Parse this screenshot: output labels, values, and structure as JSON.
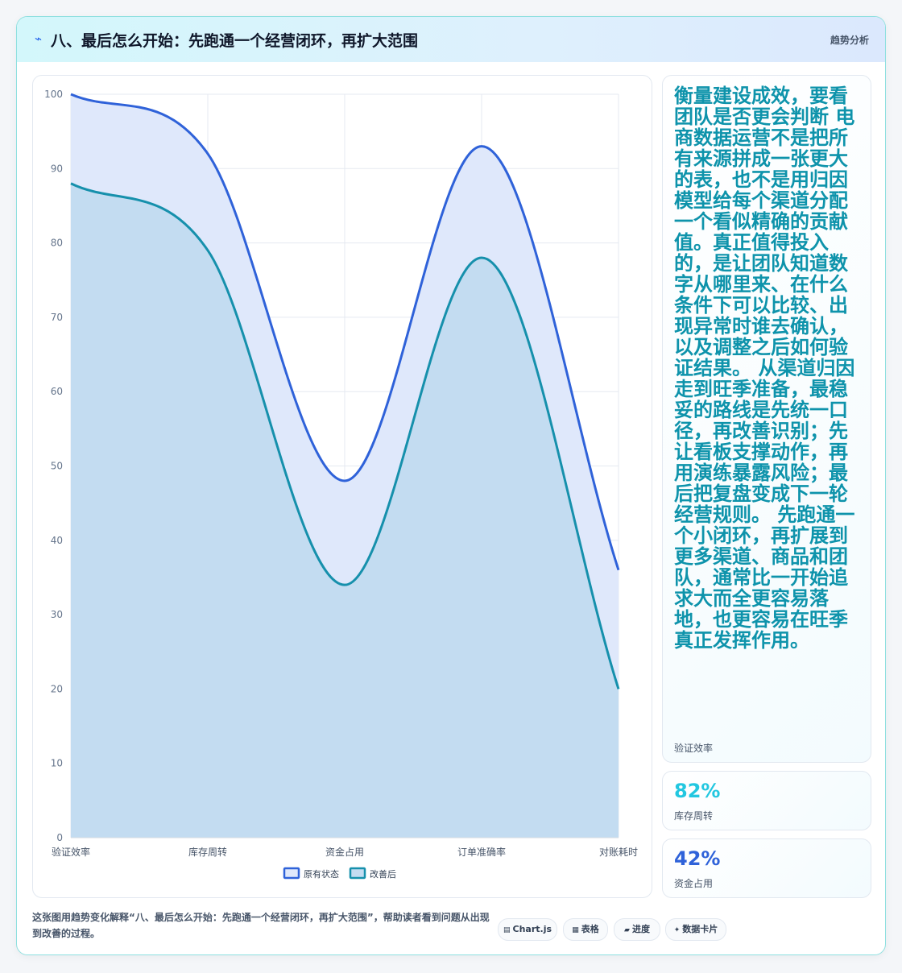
{
  "header": {
    "icon": "lightning-icon",
    "title": "八、最后怎么开始：先跑通一个经营闭环，再扩大范围",
    "tag": "趋势分析"
  },
  "chart_data": {
    "type": "line",
    "categories": [
      "验证效率",
      "库存周转",
      "资金占用",
      "订单准确率",
      "对账耗时"
    ],
    "series": [
      {
        "name": "原有状态",
        "values": [
          100,
          92,
          48,
          93,
          36
        ],
        "color": "#2f62d9",
        "fill": "#dfe8fb"
      },
      {
        "name": "改善后",
        "values": [
          88,
          79,
          34,
          78,
          20
        ],
        "color": "#1690ac",
        "fill": "#c3dcf1"
      }
    ],
    "ylim": [
      0,
      100
    ],
    "yticks": [
      0,
      10,
      20,
      30,
      40,
      50,
      60,
      70,
      80,
      90,
      100
    ],
    "grid": true,
    "legend": "bottom",
    "fill": true,
    "smooth": true
  },
  "stats": [
    {
      "text": "衡量建设成效，要看团队是否更会判断 电商数据运营不是把所有来源拼成一张更大的表，也不是用归因模型给每个渠道分配一个看似精确的贡献值。真正值得投入的，是让团队知道数字从哪里来、在什么条件下可以比较、出现异常时谁去确认，以及调整之后如何验证结果。 从渠道归因走到旺季准备，最稳妥的路线是先统一口径，再改善识别；先让看板支撑动作，再用演练暴露风险；最后把复盘变成下一轮经营规则。 先跑通一个小闭环，再扩展到更多渠道、商品和团队，通常比一开始追求大而全更容易落地，也更容易在旺季真正发挥作用。",
      "label": "验证效率"
    },
    {
      "value": "82%",
      "label": "库存周转",
      "color": "#22c7e0"
    },
    {
      "value": "42%",
      "label": "资金占用",
      "color": "#2f62d9"
    }
  ],
  "footer": {
    "description": "这张图用趋势变化解释“八、最后怎么开始：先跑通一个经营闭环，再扩大范围”，帮助读者看到问题从出现到改善的过程。",
    "chips": [
      {
        "icon": "chart-icon",
        "label": "Chart.js"
      },
      {
        "icon": "table-icon",
        "label": "表格"
      },
      {
        "icon": "progress-icon",
        "label": "进度"
      },
      {
        "icon": "sparkle-icon",
        "label": "数据卡片"
      }
    ]
  }
}
